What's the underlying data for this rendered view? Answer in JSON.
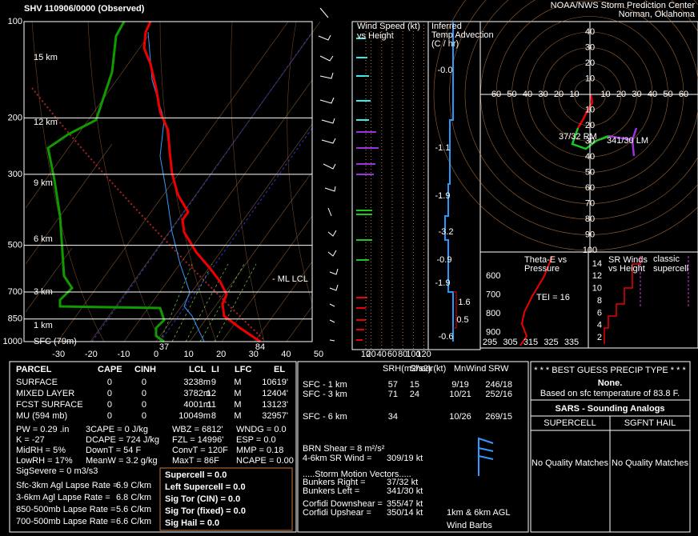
{
  "header": {
    "title": "SHV   110906/0000  (Observed)",
    "org": "NOAA/NWS Storm Prediction Center",
    "location": "Norman, Oklahoma"
  },
  "skewt": {
    "pressure_ticks": [
      100,
      200,
      300,
      500,
      700,
      850,
      1000
    ],
    "temp_ticks": [
      -30,
      -20,
      -10,
      0,
      10,
      20,
      30,
      40,
      50
    ],
    "height_labels": [
      "15 km",
      "12 km",
      "9 km",
      "6 km",
      "3 km",
      "1 km",
      "SFC (79m)"
    ],
    "surface_temp": "84",
    "surface_dewpoint": "37",
    "lcl_label": "- ML  LCL"
  },
  "wind_speed": {
    "title": "Wind Speed (kt)",
    "subtitle": "vs Height",
    "ticks": [
      10,
      20,
      40,
      60,
      80,
      100,
      120
    ]
  },
  "temp_advection": {
    "title": [
      "Inferred",
      "Temp Advection",
      "(C / hr)"
    ],
    "values": [
      "-0.0",
      "-1.1",
      "-1.9",
      "-3.2",
      "-0.9",
      "-1.9",
      "1.6",
      "0.5",
      "-0.6"
    ]
  },
  "hodograph": {
    "ring_labels": [
      10,
      20,
      30,
      40,
      50,
      60,
      70,
      80,
      90,
      100
    ],
    "axis_labels": [
      10,
      20,
      30,
      40,
      50,
      60
    ],
    "rm_label": "37/32 RM",
    "lm_label": "341/30 LM"
  },
  "thetae": {
    "title": [
      "Theta-E vs",
      "Pressure"
    ],
    "yticks": [
      600,
      700,
      800,
      900
    ],
    "xticks": [
      295,
      305,
      315,
      325,
      335
    ],
    "tei": "TEI = 16"
  },
  "srwinds": {
    "title": [
      "SR Winds",
      "vs Height"
    ],
    "note": [
      "classic",
      "supercell"
    ],
    "yticks": [
      14,
      12,
      10,
      8,
      6,
      4,
      2
    ]
  },
  "parcel": {
    "headers": [
      "PARCEL",
      "CAPE",
      "CINH",
      "LCL",
      "LI",
      "LFC",
      "EL"
    ],
    "rows": [
      [
        "SURFACE",
        "0",
        "0",
        "3238m",
        "9",
        "M",
        "10619'"
      ],
      [
        "MIXED LAYER",
        "0",
        "0",
        "3782m",
        "12",
        "M",
        "12404'"
      ],
      [
        "FCST SURFACE",
        "0",
        "0",
        "4001m",
        "11",
        "M",
        "13123'"
      ],
      [
        "MU   (594 mb)",
        "0",
        "0",
        "10049m",
        "8",
        "M",
        "32957'"
      ]
    ]
  },
  "indices": [
    [
      "PW = 0.29 .in",
      "3CAPE = 0 J/kg",
      "WBZ = 6812'",
      "WNDG = 0.0"
    ],
    [
      "K = -27",
      "DCAPE = 724 J/kg",
      "FZL = 14996'",
      "ESP = 0.0"
    ],
    [
      "MidRH = 5%",
      "DownT = 54 F",
      "ConvT = 120F",
      "MMP = 0.18"
    ],
    [
      "LowRH = 17%",
      "MeanW = 3.2 g/kg",
      "MaxT = 86F",
      "NCAPE = 0.00"
    ],
    [
      "SigSevere = 0 m3/s3"
    ]
  ],
  "lapse_rates": [
    [
      "Sfc-3km Agl Lapse Rate =",
      "6.9 C/km"
    ],
    [
      "3-6km Agl Lapse Rate =",
      "6.8 C/km"
    ],
    [
      "850-500mb Lapse Rate =",
      "5.6 C/km"
    ],
    [
      "700-500mb Lapse Rate =",
      "6.6 C/km"
    ]
  ],
  "severe": [
    "Supercell = 0.0",
    "Left Supercell = 0.0",
    "Sig Tor (CIN) = 0.0",
    "Sig Tor (fixed) = 0.0",
    "Sig Hail = 0.0"
  ],
  "kinematics": {
    "headers": [
      "SRH(m2/s2)",
      "Shear(kt)",
      "MnWind",
      "SRW"
    ],
    "rows": [
      [
        "SFC - 1 km",
        "57",
        "15",
        "9/19",
        "246/18"
      ],
      [
        "SFC - 3 km",
        "71",
        "24",
        "10/21",
        "252/16"
      ],
      [
        "SFC - 6 km",
        "34",
        "",
        "10/26",
        "269/15"
      ]
    ],
    "lines": [
      [
        "BRN Shear =  8 m²/s²",
        ""
      ],
      [
        "4-6km SR Wind =",
        "309/19 kt"
      ],
      [
        ".....Storm Motion Vectors.....",
        ""
      ],
      [
        "Bunkers Right =",
        "37/32 kt"
      ],
      [
        "Bunkers Left =",
        "341/30 kt"
      ],
      [
        "Corfidi Downshear =",
        "355/47 kt"
      ],
      [
        "Corfidi Upshear =",
        "350/14 kt"
      ]
    ],
    "barb_caption": [
      "1km & 6km AGL",
      "Wind Barbs"
    ]
  },
  "precip": {
    "title": "* * * BEST GUESS PRECIP TYPE * * *",
    "value": "None.",
    "note": "Based on sfc temperature of 83.8 F."
  },
  "sars": {
    "title": "SARS - Sounding Analogs",
    "columns": [
      "SUPERCELL",
      "SGFNT HAIL"
    ],
    "results": [
      "No Quality Matches",
      "No Quality Matches"
    ]
  }
}
